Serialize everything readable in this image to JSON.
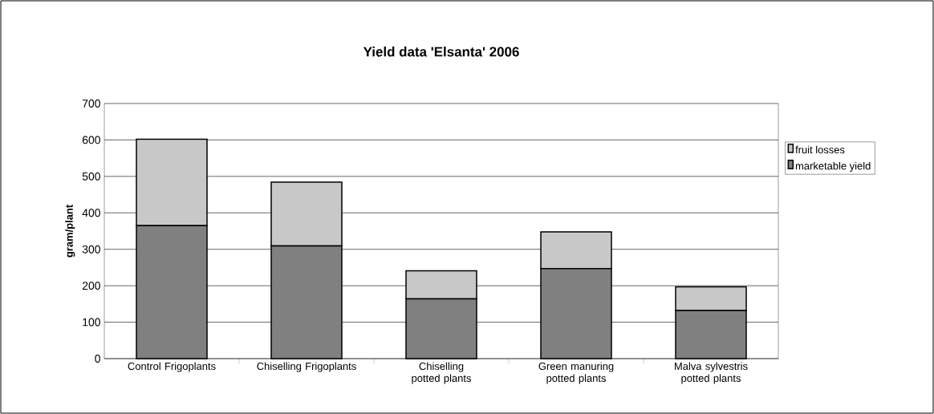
{
  "chart_data": {
    "type": "bar",
    "title": "Yield data 'Elsanta' 2006",
    "ylabel": "gram/plant",
    "categories": [
      "Control Frigoplants",
      "Chiselling Frigoplants",
      "Chiselling potted plants",
      "Green manuring potted plants",
      "Malva sylvestris potted plants"
    ],
    "series": [
      {
        "name": "marketable yield",
        "color": "#808080",
        "values": [
          365,
          309,
          164,
          247,
          132
        ]
      },
      {
        "name": "fruit losses",
        "color": "#c8c8c8",
        "values": [
          237,
          175,
          77,
          101,
          65
        ]
      }
    ],
    "stacked": true,
    "ylim": [
      0,
      700
    ],
    "yticks": [
      0,
      100,
      200,
      300,
      400,
      500,
      600,
      700
    ],
    "grid": "y",
    "legend": "right"
  }
}
